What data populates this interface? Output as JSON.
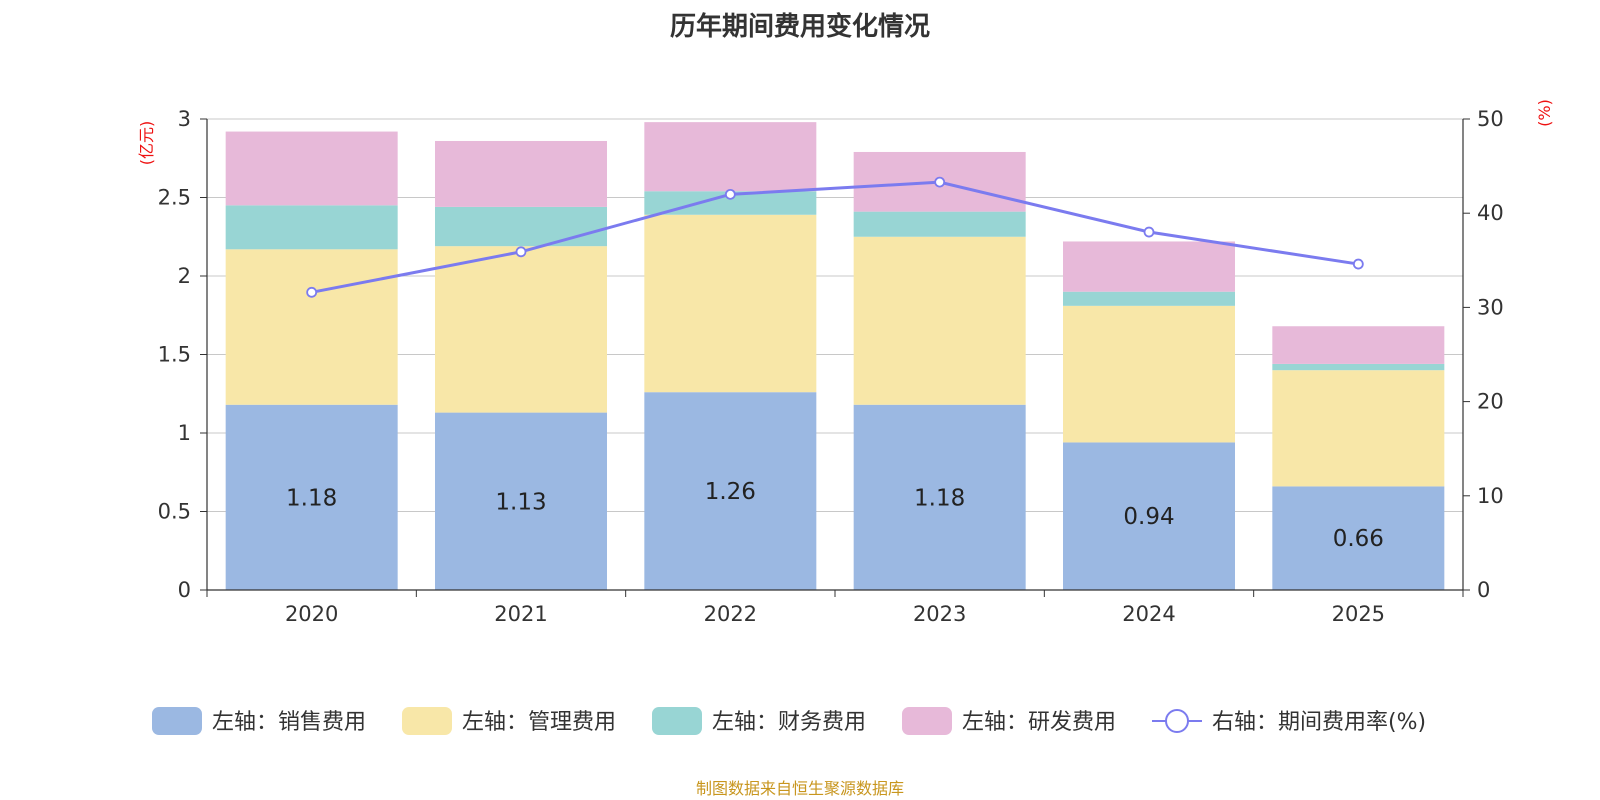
{
  "title": "历年期间费用变化情况",
  "footer": "制图数据来自恒生聚源数据库",
  "chart_data": {
    "type": "bar",
    "stacked": true,
    "title": "历年期间费用变化情况",
    "categories": [
      "2020",
      "2021",
      "2022",
      "2023",
      "2024",
      "2025"
    ],
    "left_axis": {
      "unit": "(亿元)",
      "min": 0,
      "max": 3,
      "ticks": [
        0,
        0.5,
        1,
        1.5,
        2,
        2.5,
        3
      ]
    },
    "right_axis": {
      "unit": "(%)",
      "min": 0,
      "max": 50,
      "ticks": [
        0,
        10,
        20,
        30,
        40,
        50
      ]
    },
    "series": [
      {
        "name": "左轴：销售费用",
        "axis": "left",
        "type": "bar",
        "color": "#9bb8e2",
        "values": [
          1.18,
          1.13,
          1.26,
          1.18,
          0.94,
          0.66
        ],
        "show_labels": true
      },
      {
        "name": "左轴：管理费用",
        "axis": "left",
        "type": "bar",
        "color": "#f8e7a8",
        "values": [
          0.99,
          1.06,
          1.13,
          1.07,
          0.87,
          0.74
        ]
      },
      {
        "name": "左轴：财务费用",
        "axis": "left",
        "type": "bar",
        "color": "#98d5d4",
        "values": [
          0.28,
          0.25,
          0.15,
          0.16,
          0.09,
          0.04
        ]
      },
      {
        "name": "左轴：研发费用",
        "axis": "left",
        "type": "bar",
        "color": "#e7b9d9",
        "values": [
          0.47,
          0.42,
          0.44,
          0.38,
          0.32,
          0.24
        ]
      },
      {
        "name": "右轴：期间费用率(%)",
        "axis": "right",
        "type": "line",
        "color": "#7b7bef",
        "values": [
          31.6,
          35.9,
          42.0,
          43.3,
          38.0,
          34.6
        ]
      }
    ],
    "grid": true,
    "legend_position": "bottom"
  }
}
